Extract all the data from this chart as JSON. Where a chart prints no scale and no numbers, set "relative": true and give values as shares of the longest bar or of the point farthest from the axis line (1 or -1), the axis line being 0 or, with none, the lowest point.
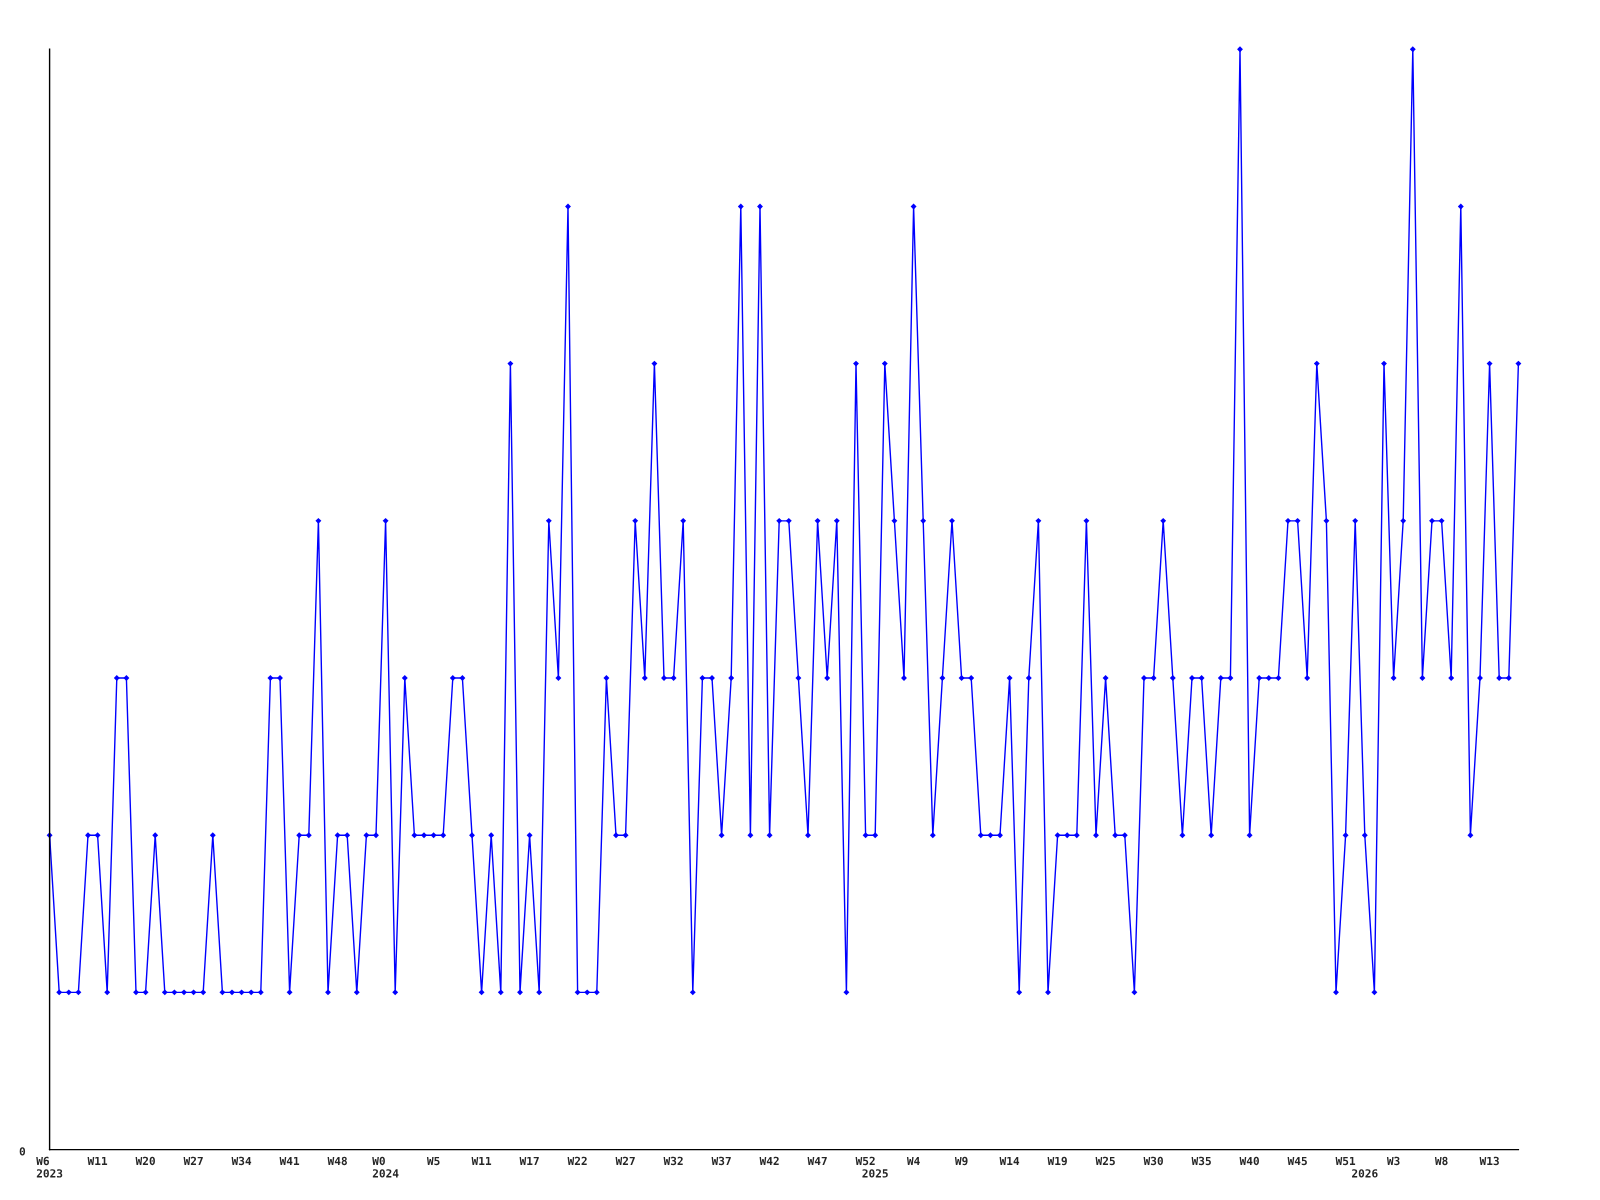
{
  "chart_data": {
    "type": "line",
    "relative": true,
    "marker": "diamond",
    "line_style": "solid",
    "color": "#0000ff",
    "categories": [
      "W6\n2023",
      null,
      null,
      null,
      null,
      "W11",
      null,
      null,
      null,
      null,
      "W20",
      null,
      null,
      null,
      null,
      "W27",
      null,
      null,
      null,
      null,
      "W34",
      null,
      null,
      null,
      null,
      "W41",
      null,
      null,
      null,
      null,
      "W48",
      null,
      null,
      null,
      null,
      "W0\n2024",
      null,
      null,
      null,
      null,
      "W5",
      null,
      null,
      null,
      null,
      "W11",
      null,
      null,
      null,
      null,
      "W17",
      null,
      null,
      null,
      null,
      "W22",
      null,
      null,
      null,
      null,
      "W27",
      null,
      null,
      null,
      null,
      "W32",
      null,
      null,
      null,
      null,
      "W37",
      null,
      null,
      null,
      null,
      "W42",
      null,
      null,
      null,
      null,
      "W47",
      null,
      null,
      null,
      null,
      "W52",
      "\n2025",
      null,
      null,
      null,
      "W4",
      null,
      null,
      null,
      null,
      "W9",
      null,
      null,
      null,
      null,
      "W14",
      null,
      null,
      null,
      null,
      "W19",
      null,
      null,
      null,
      null,
      "W25",
      null,
      null,
      null,
      null,
      "W30",
      null,
      null,
      null,
      null,
      "W35",
      null,
      null,
      null,
      null,
      "W40",
      null,
      null,
      null,
      null,
      "W45",
      null,
      null,
      null,
      null,
      "W51",
      null,
      "\n2026",
      null,
      null,
      "W3",
      null,
      null,
      null,
      null,
      "W8",
      null,
      null,
      null,
      null,
      "W13",
      null,
      null,
      null
    ],
    "values": [
      0.2857,
      0.1429,
      0.1429,
      0.1429,
      0.2857,
      0.2857,
      0.1429,
      0.4286,
      0.4286,
      0.1429,
      0.1429,
      0.2857,
      0.1429,
      0.1429,
      0.1429,
      0.1429,
      0.1429,
      0.2857,
      0.1429,
      0.1429,
      0.1429,
      0.1429,
      0.1429,
      0.4286,
      0.4286,
      0.1429,
      0.2857,
      0.2857,
      0.5714,
      0.1429,
      0.2857,
      0.2857,
      0.1429,
      0.2857,
      0.2857,
      0.5714,
      0.1429,
      0.4286,
      0.2857,
      0.2857,
      0.2857,
      0.2857,
      0.4286,
      0.4286,
      0.2857,
      0.1429,
      0.2857,
      0.1429,
      0.7143,
      0.1429,
      0.2857,
      0.1429,
      0.5714,
      0.4286,
      0.8571,
      0.1429,
      0.1429,
      0.1429,
      0.4286,
      0.2857,
      0.2857,
      0.5714,
      0.4286,
      0.7143,
      0.4286,
      0.4286,
      0.5714,
      0.1429,
      0.4286,
      0.4286,
      0.2857,
      0.4286,
      0.8571,
      0.2857,
      0.8571,
      0.2857,
      0.5714,
      0.5714,
      0.4286,
      0.2857,
      0.5714,
      0.4286,
      0.5714,
      0.1429,
      0.7143,
      0.2857,
      0.2857,
      0.7143,
      0.5714,
      0.4286,
      0.8571,
      0.5714,
      0.2857,
      0.4286,
      0.5714,
      0.4286,
      0.4286,
      0.2857,
      0.2857,
      0.2857,
      0.4286,
      0.1429,
      0.4286,
      0.5714,
      0.1429,
      0.2857,
      0.2857,
      0.2857,
      0.5714,
      0.2857,
      0.4286,
      0.2857,
      0.2857,
      0.1429,
      0.4286,
      0.4286,
      0.5714,
      0.4286,
      0.2857,
      0.4286,
      0.4286,
      0.2857,
      0.4286,
      0.4286,
      1,
      0.2857,
      0.4286,
      0.4286,
      0.4286,
      0.5714,
      0.5714,
      0.4286,
      0.7143,
      0.5714,
      0.1429,
      0.2857,
      0.5714,
      0.2857,
      0.1429,
      0.7143,
      0.4286,
      0.5714,
      1,
      0.4286,
      0.5714,
      0.5714,
      0.4286,
      0.8571,
      0.2857,
      0.4286,
      0.7143,
      0.4286,
      0.4286,
      0.7143
    ],
    "annotations": [
      "0"
    ]
  }
}
